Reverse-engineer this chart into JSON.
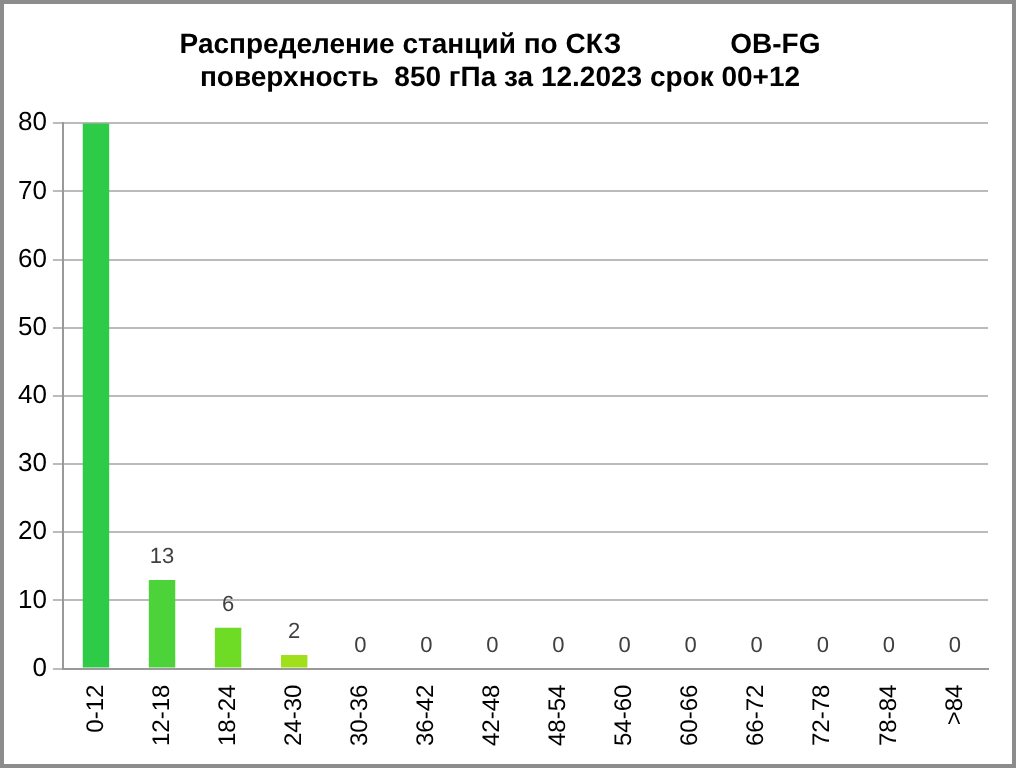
{
  "chart_data": {
    "type": "bar",
    "title": "Распределение станций по СКЗ              OB-FG\nповерхность  850 гПа за 12.2023 срок 00+12",
    "categories": [
      "0-12",
      "12-18",
      "18-24",
      "24-30",
      "30-36",
      "36-42",
      "42-48",
      "48-54",
      "54-60",
      "60-66",
      "66-72",
      "72-78",
      "78-84",
      ">84"
    ],
    "values": [
      80,
      13,
      6,
      2,
      0,
      0,
      0,
      0,
      0,
      0,
      0,
      0,
      0,
      0
    ],
    "value_labels": [
      null,
      "13",
      "6",
      "2",
      "0",
      "0",
      "0",
      "0",
      "0",
      "0",
      "0",
      "0",
      "0",
      "0"
    ],
    "colors": [
      "#2dcb48",
      "#4dd33a",
      "#6edc24",
      "#a0e01a",
      "#b0e020",
      "#b0e020",
      "#b0e020",
      "#b0e020",
      "#b0e020",
      "#b0e020",
      "#b0e020",
      "#b0e020",
      "#b0e020",
      "#b0e020"
    ],
    "ylim": [
      0,
      80
    ],
    "yticks": [
      0,
      10,
      20,
      30,
      40,
      50,
      60,
      70,
      80
    ],
    "grid": "y",
    "legend": false
  }
}
